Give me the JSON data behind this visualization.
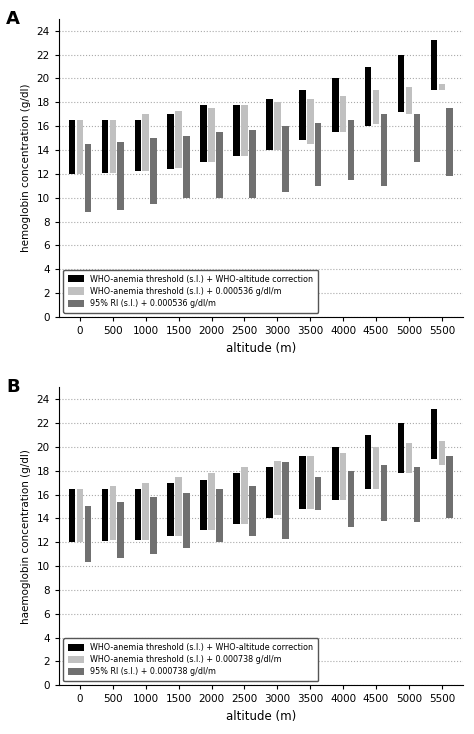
{
  "altitudes": [
    0,
    500,
    1000,
    1500,
    2000,
    2500,
    3000,
    3500,
    4000,
    4500,
    5000,
    5500
  ],
  "panel_A": {
    "title": "A",
    "ylabel": "hemoglobin concentration (g/dl)",
    "xlabel": "altitude (m)",
    "legend_labels": [
      "WHO-anemia threshold (s.l.) + WHO-altitude correction",
      "WHO-anemia threshold (s.l.) + 0.000536 g/dl/m",
      "95% RI (s.l.) + 0.000536 g/dl/m"
    ],
    "colors": [
      "#000000",
      "#c0c0c0",
      "#707070"
    ],
    "bars": {
      "black": {
        "bottom": [
          12.0,
          12.1,
          12.2,
          12.4,
          13.0,
          13.5,
          14.0,
          14.8,
          15.5,
          16.0,
          17.2,
          19.0
        ],
        "top": [
          16.5,
          16.5,
          16.5,
          17.0,
          17.8,
          17.8,
          18.3,
          19.0,
          20.0,
          21.0,
          22.0,
          23.2
        ]
      },
      "light": {
        "bottom": [
          12.0,
          12.1,
          12.2,
          12.5,
          13.0,
          13.5,
          14.0,
          14.5,
          15.5,
          16.2,
          17.0,
          19.0
        ],
        "top": [
          16.5,
          16.5,
          17.0,
          17.3,
          17.5,
          17.8,
          18.0,
          18.3,
          18.5,
          19.0,
          19.3,
          19.5
        ]
      },
      "dark": {
        "bottom": [
          8.8,
          9.0,
          9.5,
          10.0,
          10.0,
          10.0,
          10.5,
          11.0,
          11.5,
          11.0,
          13.0,
          11.8
        ],
        "top": [
          14.5,
          14.7,
          15.0,
          15.2,
          15.5,
          15.7,
          16.0,
          16.3,
          16.5,
          17.0,
          17.0,
          17.5
        ]
      }
    }
  },
  "panel_B": {
    "title": "B",
    "ylabel": "haemoglobin concentration (g/dl)",
    "xlabel": "altitude (m)",
    "legend_labels": [
      "WHO-anemia threshold (s.l.) + WHO-altitude correction",
      "WHO-anemia threshold (s.l.) + 0.000738 g/dl/m",
      "95% RI (s.l.) + 0.000738 g/dl/m"
    ],
    "colors": [
      "#000000",
      "#c0c0c0",
      "#707070"
    ],
    "bars": {
      "black": {
        "bottom": [
          12.0,
          12.1,
          12.2,
          12.5,
          13.0,
          13.5,
          14.0,
          14.8,
          15.5,
          16.5,
          17.8,
          19.0
        ],
        "top": [
          16.5,
          16.5,
          16.5,
          17.0,
          17.2,
          17.8,
          18.3,
          19.2,
          20.0,
          21.0,
          22.0,
          23.2
        ]
      },
      "light": {
        "bottom": [
          12.0,
          12.2,
          12.2,
          12.5,
          13.0,
          13.5,
          14.3,
          14.8,
          15.5,
          16.5,
          17.8,
          18.5
        ],
        "top": [
          16.5,
          16.7,
          17.0,
          17.5,
          17.8,
          18.3,
          18.8,
          19.2,
          19.5,
          20.0,
          20.3,
          20.5
        ]
      },
      "dark": {
        "bottom": [
          10.3,
          10.7,
          11.0,
          11.5,
          12.0,
          12.5,
          12.3,
          14.7,
          13.3,
          13.8,
          13.7,
          14.0
        ],
        "top": [
          15.0,
          15.4,
          15.8,
          16.1,
          16.5,
          16.7,
          18.7,
          17.5,
          18.0,
          18.5,
          18.3,
          19.2
        ]
      }
    }
  },
  "ylim": [
    0,
    25
  ],
  "yticks": [
    0,
    2,
    4,
    6,
    8,
    10,
    12,
    14,
    16,
    18,
    20,
    22,
    24
  ],
  "figsize": [
    4.74,
    7.34
  ],
  "dpi": 100
}
